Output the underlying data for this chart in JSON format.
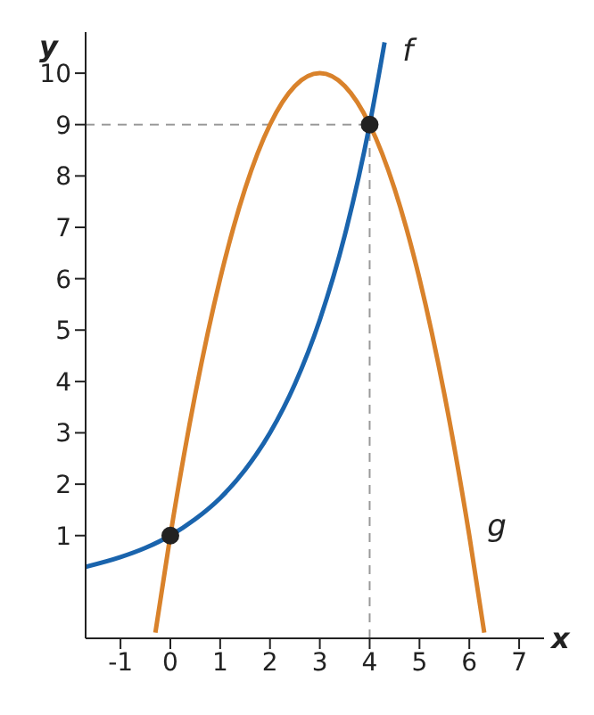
{
  "chart_data": {
    "type": "line",
    "xlabel": "x",
    "ylabel": "y",
    "xlim": [
      -1.7,
      7.5
    ],
    "ylim": [
      -1,
      10.8
    ],
    "xticks": [
      -1,
      0,
      1,
      2,
      3,
      4,
      5,
      6,
      7
    ],
    "yticks": [
      1,
      2,
      3,
      4,
      5,
      6,
      7,
      8,
      9,
      10
    ],
    "marker": "none",
    "line_style": "solid",
    "series": [
      {
        "name": "f",
        "color": "#1a64ad",
        "x": [
          -1.7,
          -1,
          -0.5,
          0,
          0.5,
          1,
          1.5,
          2,
          2.5,
          3,
          3.5,
          4,
          4.3
        ],
        "values": [
          0.39,
          0.58,
          0.76,
          1,
          1.32,
          1.73,
          2.28,
          3,
          3.95,
          5.2,
          6.84,
          9,
          10.6
        ]
      },
      {
        "name": "g",
        "color": "#d9822b",
        "x": [
          -0.3,
          0,
          0.5,
          1,
          1.5,
          2,
          2.5,
          3,
          3.5,
          4,
          4.5,
          5,
          5.5,
          6,
          6.3
        ],
        "values": [
          -0.89,
          1,
          3.75,
          6,
          7.75,
          9,
          9.75,
          10,
          9.75,
          9,
          7.75,
          6,
          3.75,
          1,
          -0.89
        ]
      },
      {
        "type": "scatter",
        "color": "#222222",
        "marker": "circle",
        "x": [
          0,
          4
        ],
        "values": [
          1,
          9
        ]
      }
    ],
    "ref_lines": [
      {
        "axis": "x",
        "value": 4,
        "color": "#999999",
        "line_style": "dashed"
      },
      {
        "axis": "y",
        "value": 9,
        "color": "#999999",
        "line_style": "dashed"
      }
    ]
  }
}
